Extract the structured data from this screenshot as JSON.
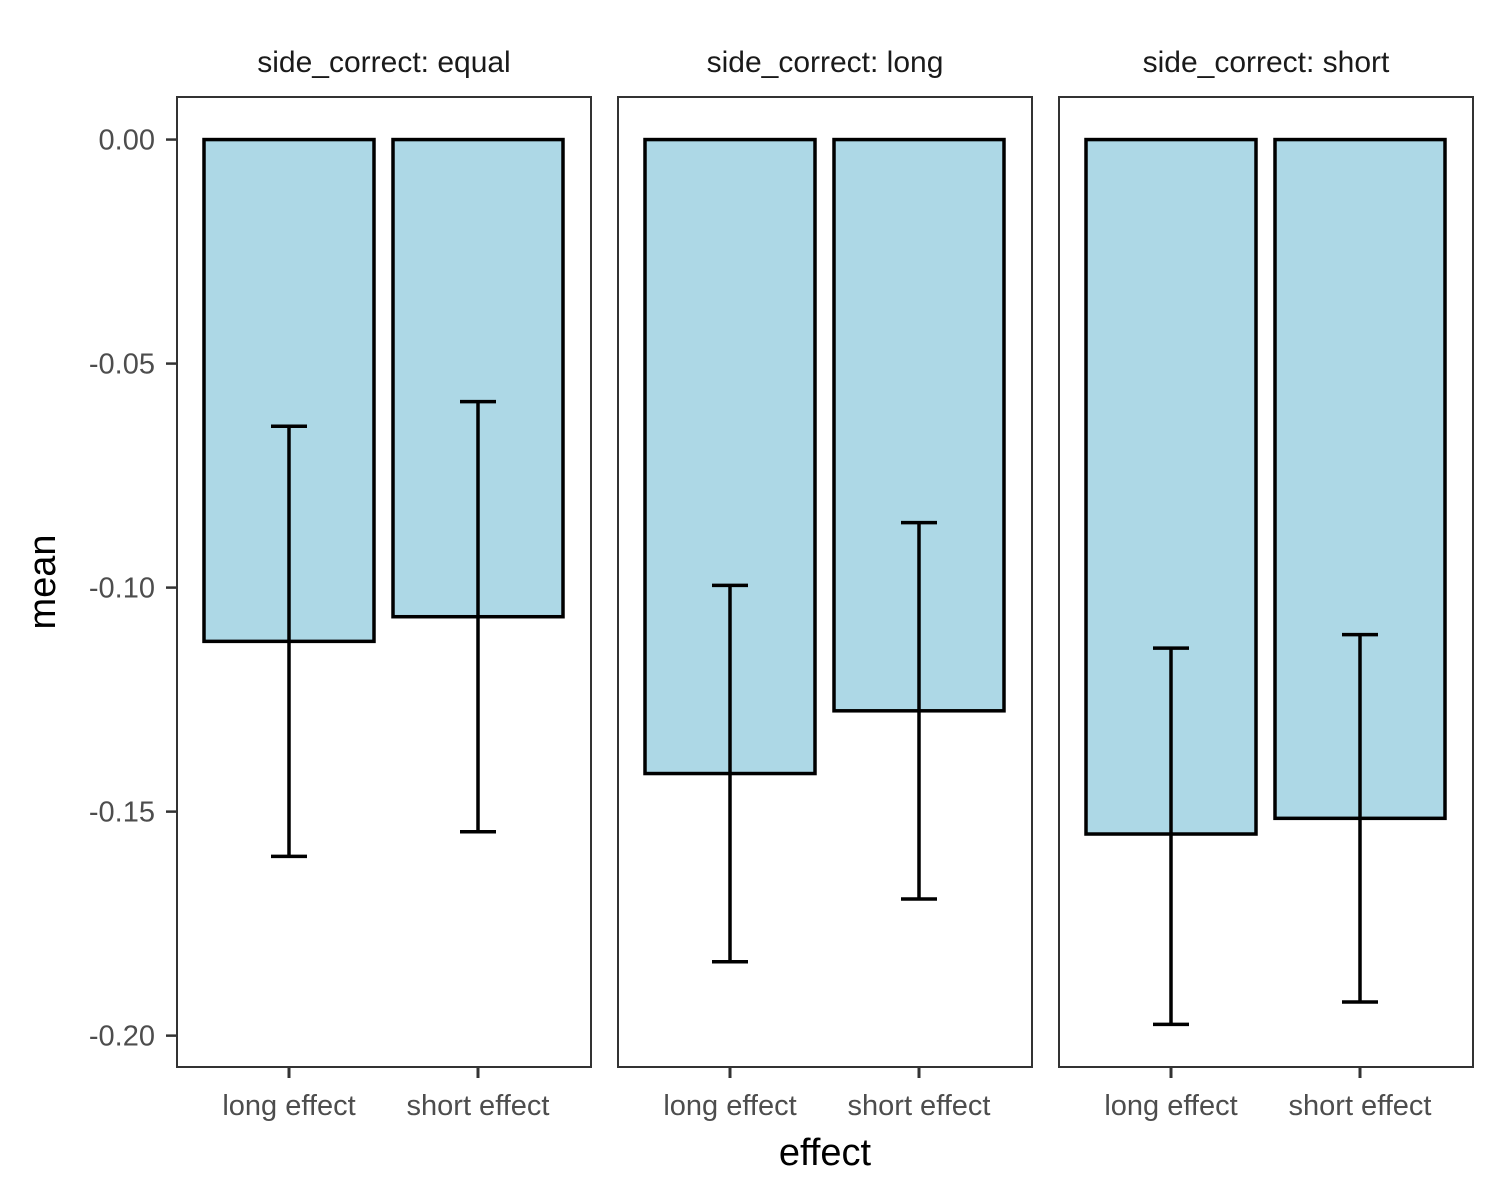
{
  "chart_data": {
    "type": "bar",
    "facet_variable": "side_correct",
    "xlabel": "effect",
    "ylabel": "mean",
    "ylim": [
      -0.207,
      0.0095
    ],
    "yticks": [
      0.0,
      -0.05,
      -0.1,
      -0.15,
      -0.2
    ],
    "ytick_labels": [
      "0.00",
      "-0.05",
      "-0.10",
      "-0.15",
      "-0.20"
    ],
    "categories": [
      "long effect",
      "short effect"
    ],
    "grid": false,
    "legend": "none",
    "colors": {
      "bar_fill": "#ADD8E6",
      "bar_stroke": "#000000",
      "panel_border": "#333333"
    },
    "facets": [
      {
        "label": "side_correct: equal",
        "values": [
          -0.112,
          -0.1065
        ],
        "error_low": [
          -0.16,
          -0.1545
        ],
        "error_high": [
          -0.064,
          -0.0585
        ]
      },
      {
        "label": "side_correct: long",
        "values": [
          -0.1415,
          -0.1275
        ],
        "error_low": [
          -0.1835,
          -0.1695
        ],
        "error_high": [
          -0.0995,
          -0.0855
        ]
      },
      {
        "label": "side_correct: short",
        "values": [
          -0.155,
          -0.1515
        ],
        "error_low": [
          -0.1975,
          -0.1925
        ],
        "error_high": [
          -0.1135,
          -0.1105
        ]
      }
    ]
  }
}
